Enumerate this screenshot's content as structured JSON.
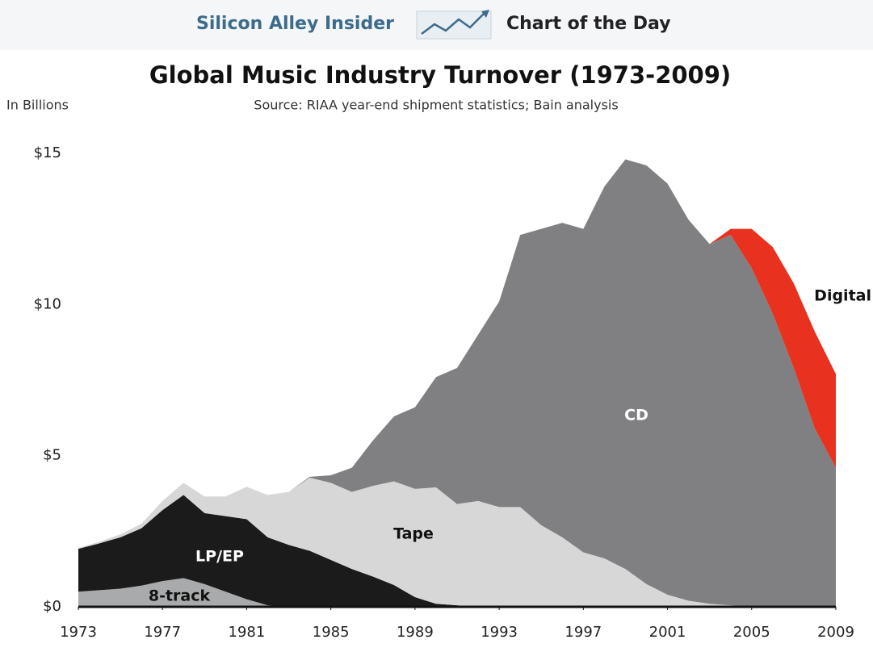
{
  "header": {
    "brand": "Silicon Alley Insider",
    "tagline": "Chart of the Day"
  },
  "chart_data": {
    "type": "stacked-area",
    "title": "Global Music Industry Turnover (1973-2009)",
    "subtitle": "Source: RIAA year-end shipment statistics; Bain analysis",
    "y_label": "In Billions",
    "x": [
      1973,
      1974,
      1975,
      1976,
      1977,
      1978,
      1979,
      1980,
      1981,
      1982,
      1983,
      1984,
      1985,
      1986,
      1987,
      1988,
      1989,
      1990,
      1991,
      1992,
      1993,
      1994,
      1995,
      1996,
      1997,
      1998,
      1999,
      2000,
      2001,
      2002,
      2003,
      2004,
      2005,
      2006,
      2007,
      2008,
      2009
    ],
    "xlim": [
      1973,
      2009
    ],
    "xticks": [
      1973,
      1977,
      1981,
      1985,
      1989,
      1993,
      1997,
      2001,
      2005,
      2009
    ],
    "ylim": [
      0,
      15
    ],
    "yticks": [
      {
        "value": 0,
        "label": "$0"
      },
      {
        "value": 5,
        "label": "$5"
      },
      {
        "value": 10,
        "label": "$10"
      },
      {
        "value": 15,
        "label": "$15"
      }
    ],
    "grid": false,
    "series": [
      {
        "name": "8-track",
        "color": "#a9aaac",
        "values": [
          0.5,
          0.55,
          0.6,
          0.7,
          0.85,
          0.95,
          0.75,
          0.5,
          0.25,
          0.05,
          0,
          0,
          0,
          0,
          0,
          0,
          0,
          0,
          0,
          0,
          0,
          0,
          0,
          0,
          0,
          0,
          0,
          0,
          0,
          0,
          0,
          0,
          0,
          0,
          0,
          0,
          0
        ]
      },
      {
        "name": "LP/EP",
        "color": "#1b1b1b",
        "values": [
          1.42,
          1.55,
          1.7,
          1.9,
          2.35,
          2.75,
          2.35,
          2.5,
          2.65,
          2.25,
          2.05,
          1.85,
          1.55,
          1.25,
          1.0,
          0.72,
          0.32,
          0.1,
          0.05,
          0,
          0,
          0,
          0,
          0,
          0,
          0,
          0,
          0,
          0,
          0,
          0,
          0,
          0,
          0,
          0,
          0,
          0
        ]
      },
      {
        "name": "Tape",
        "color": "#d7d7d7",
        "values": [
          0.03,
          0.05,
          0.1,
          0.15,
          0.3,
          0.4,
          0.55,
          0.65,
          1.07,
          1.4,
          1.75,
          2.42,
          2.55,
          2.55,
          3.0,
          3.43,
          3.58,
          3.85,
          3.35,
          3.5,
          3.3,
          3.3,
          2.7,
          2.3,
          1.8,
          1.6,
          1.25,
          0.75,
          0.4,
          0.2,
          0.1,
          0.05,
          0,
          0,
          0,
          0,
          0
        ]
      },
      {
        "name": "CD",
        "color": "#808083",
        "values": [
          0,
          0,
          0,
          0,
          0,
          0,
          0,
          0,
          0,
          0,
          0,
          0.03,
          0.25,
          0.8,
          1.5,
          2.15,
          2.7,
          3.65,
          4.5,
          5.5,
          6.8,
          9.0,
          9.8,
          10.4,
          10.7,
          12.3,
          13.55,
          13.85,
          13.6,
          12.6,
          11.9,
          12.25,
          11.2,
          9.7,
          7.9,
          5.9,
          4.6
        ]
      },
      {
        "name": "Digital",
        "color": "#e8311f",
        "values": [
          0,
          0,
          0,
          0,
          0,
          0,
          0,
          0,
          0,
          0,
          0,
          0,
          0,
          0,
          0,
          0,
          0,
          0,
          0,
          0,
          0,
          0,
          0,
          0,
          0,
          0,
          0,
          0,
          0,
          0,
          0,
          0.2,
          1.3,
          2.2,
          2.8,
          3.2,
          3.1
        ]
      }
    ]
  }
}
